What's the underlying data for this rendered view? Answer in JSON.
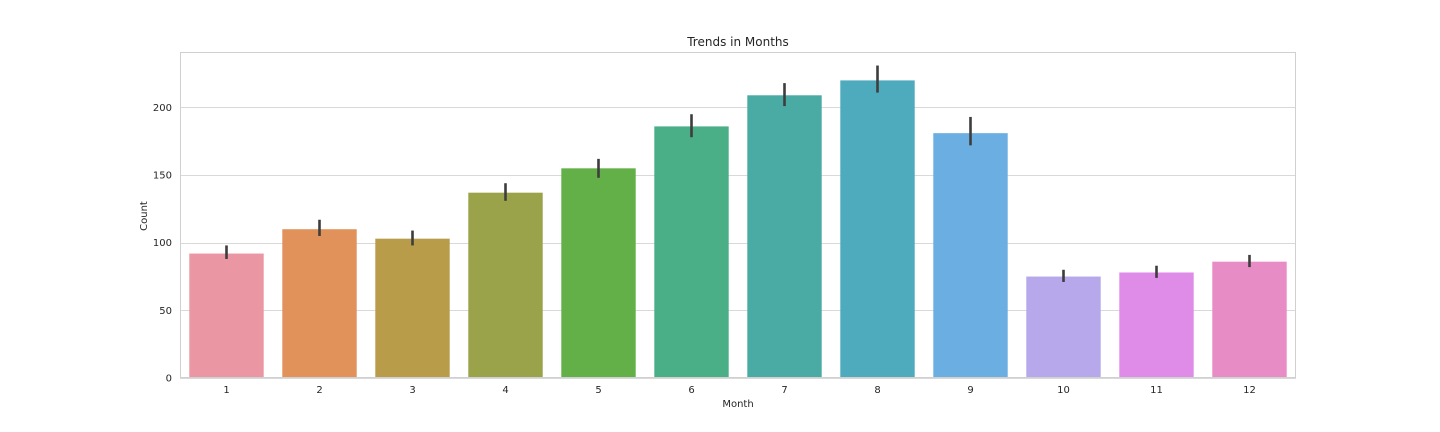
{
  "chart_data": {
    "type": "bar",
    "title": "Trends in Months",
    "xlabel": "Month",
    "ylabel": "Count",
    "categories": [
      "1",
      "2",
      "3",
      "4",
      "5",
      "6",
      "7",
      "8",
      "9",
      "10",
      "11",
      "12"
    ],
    "values": [
      92,
      110,
      103,
      137,
      155,
      186,
      209,
      220,
      181,
      75,
      78,
      86
    ],
    "error_bars": [
      [
        88,
        98
      ],
      [
        105,
        117
      ],
      [
        98,
        109
      ],
      [
        131,
        144
      ],
      [
        148,
        162
      ],
      [
        178,
        195
      ],
      [
        201,
        218
      ],
      [
        211,
        231
      ],
      [
        172,
        193
      ],
      [
        71,
        80
      ],
      [
        74,
        83
      ],
      [
        82,
        91
      ]
    ],
    "colors": [
      "#ea96a3",
      "#e1925b",
      "#b99c4a",
      "#9aa24a",
      "#63b048",
      "#4aaf87",
      "#4aaba5",
      "#4eaabd",
      "#6aaee2",
      "#b6a8eb",
      "#df8ce9",
      "#e78cc5"
    ],
    "error_color": "#3d3d3d",
    "ylim": [
      0,
      241
    ],
    "yticks": [
      0,
      50,
      100,
      150,
      200
    ],
    "grid": true,
    "legend": false
  }
}
